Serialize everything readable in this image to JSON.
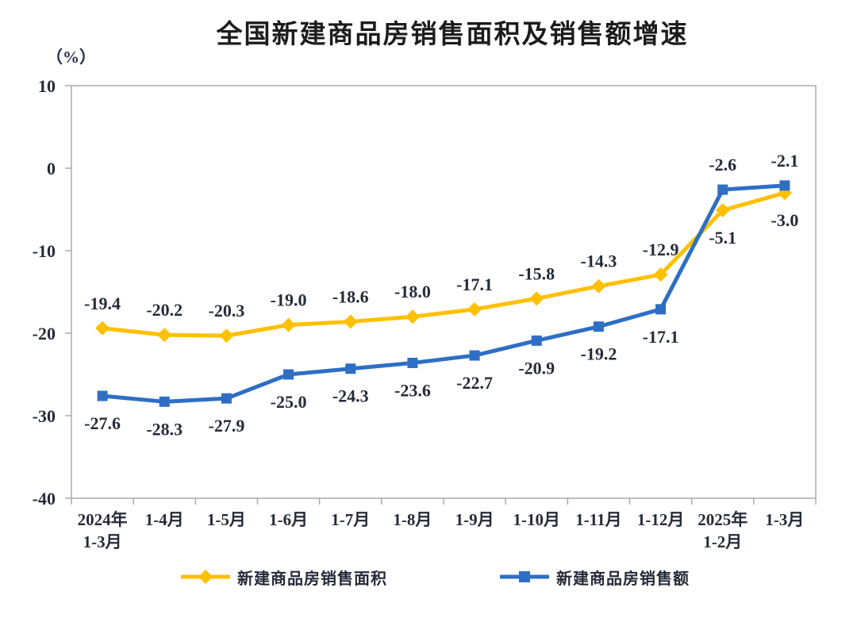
{
  "title": "全国新建商品房销售面积及销售额增速",
  "unit_label": "（%）",
  "chart_data": {
    "type": "line",
    "title": "全国新建商品房销售面积及销售额增速",
    "ylabel": "（%）",
    "categories": [
      "2024年\n1-3月",
      "1-4月",
      "1-5月",
      "1-6月",
      "1-7月",
      "1-8月",
      "1-9月",
      "1-10月",
      "1-11月",
      "1-12月",
      "2025年\n1-2月",
      "1-3月"
    ],
    "series": [
      {
        "name": "新建商品房销售面积",
        "marker": "diamond",
        "color": "#FFC000",
        "values": [
          -19.4,
          -20.2,
          -20.3,
          -19.0,
          -18.6,
          -18.0,
          -17.1,
          -15.8,
          -14.3,
          -12.9,
          -5.1,
          -3.0
        ],
        "label_sides": [
          "above",
          "above",
          "above",
          "above",
          "above",
          "above",
          "above",
          "above",
          "above",
          "above",
          "below",
          "below"
        ]
      },
      {
        "name": "新建商品房销售额",
        "marker": "square",
        "color": "#2E6FC4",
        "values": [
          -27.6,
          -28.3,
          -27.9,
          -25.0,
          -24.3,
          -23.6,
          -22.7,
          -20.9,
          -19.2,
          -17.1,
          -2.6,
          -2.1
        ],
        "label_sides": [
          "below",
          "below",
          "below",
          "below",
          "below",
          "below",
          "below",
          "below",
          "below",
          "below",
          "above",
          "above"
        ]
      }
    ],
    "ylim": [
      -40,
      10
    ],
    "yticks": [
      10,
      0,
      -10,
      -20,
      -30,
      -40
    ],
    "grid": false,
    "legend_position": "bottom",
    "axis_color": "#ABABAB",
    "text_color": "#262b38"
  }
}
